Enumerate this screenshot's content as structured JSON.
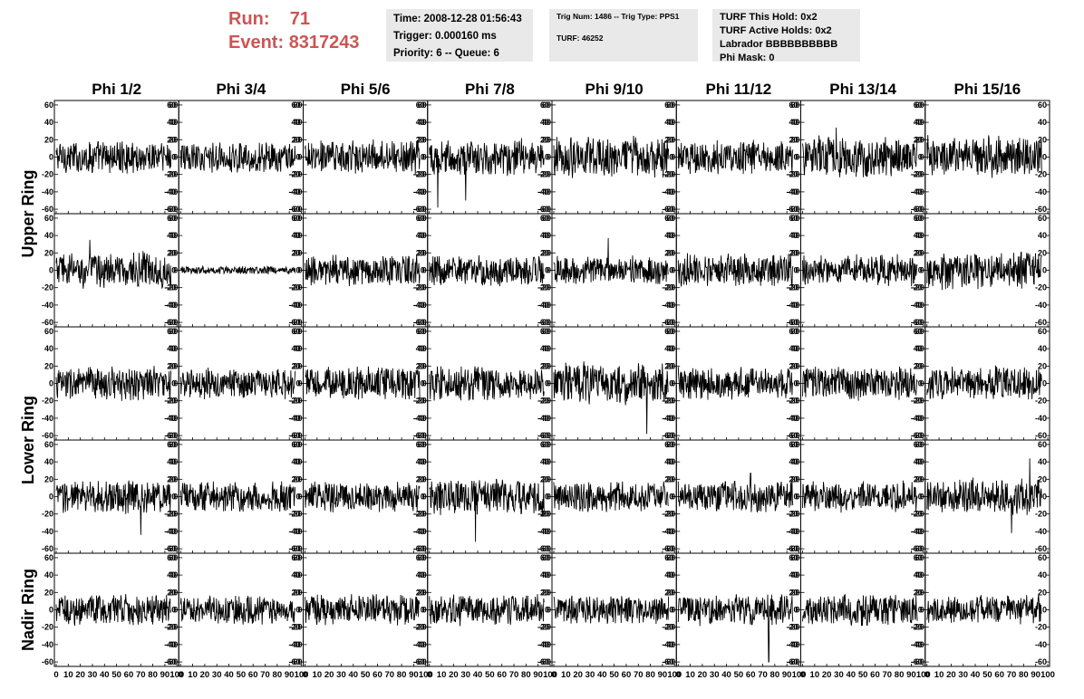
{
  "header": {
    "run_label": "Run:",
    "run_value": "71",
    "event_label": "Event:",
    "event_value": "8317243",
    "time_box": [
      "Time: 2008-12-28 01:56:43",
      "Trigger: 0.000160 ms",
      "Priority: 6 -- Queue: 6"
    ],
    "trig_box": {
      "line1": "Trig Num: 1486 -- Trig Type: PPS1",
      "line2": "TURF: 46252"
    },
    "turf_box": [
      "TURF This Hold: 0x2",
      "TURF Active Holds: 0x2",
      "Labrador BBBBBBBBBB",
      "Phi Mask: 0"
    ]
  },
  "chart_data": {
    "type": "line",
    "column_titles": [
      "Phi 1/2",
      "Phi 3/4",
      "Phi 5/6",
      "Phi 7/8",
      "Phi 9/10",
      "Phi 11/12",
      "Phi 13/14",
      "Phi 15/16"
    ],
    "row_titles": [
      "Upper Ring",
      "Lower Ring",
      "Nadir Ring"
    ],
    "rows_per_group": [
      2,
      2,
      1
    ],
    "y_ticks": [
      "-60",
      "-40",
      "-20",
      "0",
      "20",
      "40",
      "60"
    ],
    "x_ticks_last_row": [
      "0",
      "10",
      "20",
      "30",
      "40",
      "50",
      "60",
      "70",
      "80",
      "90",
      "100"
    ],
    "x_range": [
      0,
      100
    ],
    "ylim": [
      -62,
      62
    ],
    "samples_per_trace": 260,
    "trace_x_max": 95,
    "trace_amplitude": [
      [
        13,
        12,
        13,
        14,
        16,
        13,
        16,
        16
      ],
      [
        14,
        3,
        12,
        12,
        11,
        13,
        12,
        15
      ],
      [
        13,
        12,
        13,
        14,
        16,
        13,
        14,
        13
      ],
      [
        13,
        12,
        12,
        14,
        12,
        12,
        12,
        14
      ],
      [
        12,
        11,
        12,
        12,
        11,
        12,
        12,
        11
      ]
    ],
    "trace_spikes": [
      [
        [],
        [],
        [],
        [
          [
            7,
            -58
          ],
          [
            30,
            -50
          ]
        ],
        [],
        [],
        [
          [
            28,
            34
          ]
        ],
        []
      ],
      [
        [
          [
            28,
            35
          ]
        ],
        [],
        [],
        [],
        [
          [
            45,
            37
          ]
        ],
        [],
        [],
        []
      ],
      [
        [],
        [],
        [],
        [],
        [
          [
            77,
            -58
          ]
        ],
        [],
        [],
        []
      ],
      [
        [
          [
            70,
            -44
          ]
        ],
        [],
        [],
        [
          [
            38,
            -52
          ]
        ],
        [],
        [
          [
            60,
            27
          ]
        ],
        [],
        [
          [
            85,
            44
          ],
          [
            70,
            -42
          ]
        ]
      ],
      [
        [],
        [],
        [],
        [],
        [],
        [
          [
            75,
            -60
          ]
        ],
        [],
        []
      ]
    ],
    "color": "#000000"
  }
}
